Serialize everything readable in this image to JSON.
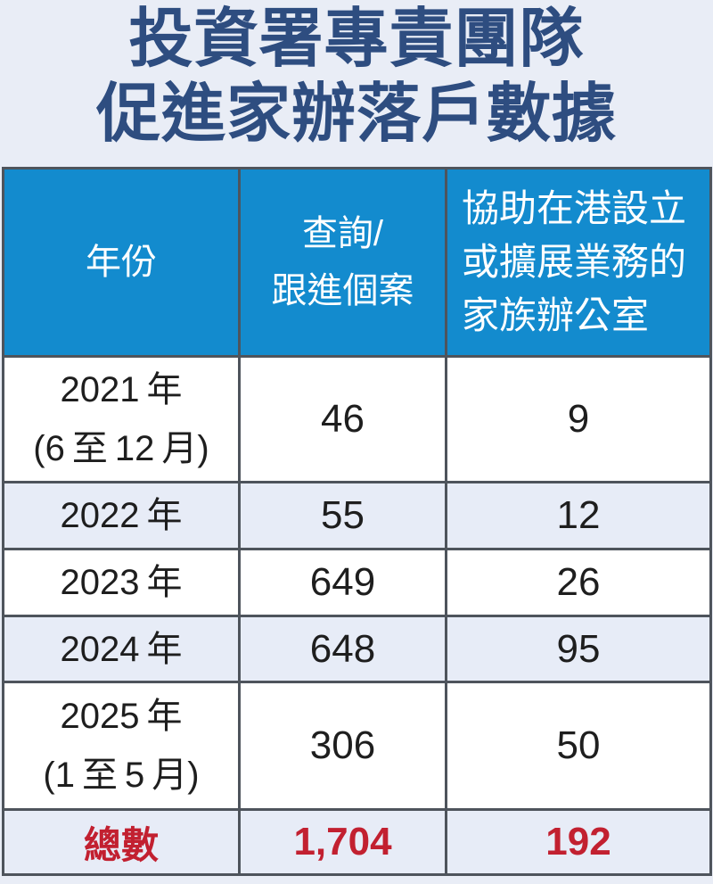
{
  "title": {
    "text": "投資署專責團隊\n促進家辦落戶數據",
    "color": "#2E4D80"
  },
  "table": {
    "headers": {
      "year": "年份",
      "inquiries": "查詢/\n跟進個案",
      "family_offices": "協助在港設立\n或擴展業務的\n家族辦公室"
    },
    "rows": [
      {
        "year": "2021 年\n(6 至 12 月)",
        "inquiries": "46",
        "family_offices": "9"
      },
      {
        "year": "2022 年",
        "inquiries": "55",
        "family_offices": "12"
      },
      {
        "year": "2023 年",
        "inquiries": "649",
        "family_offices": "26"
      },
      {
        "year": "2024 年",
        "inquiries": "648",
        "family_offices": "95"
      },
      {
        "year": "2025 年\n(1 至 5 月)",
        "inquiries": "306",
        "family_offices": "50"
      }
    ],
    "total": {
      "label": "總數",
      "inquiries": "1,704",
      "family_offices": "192"
    }
  },
  "colors": {
    "page_bg": "#E9EDF6",
    "header_bg": "#138BCE",
    "header_text": "#FFFFFF",
    "alt_row_bg": "#E7ECF7",
    "title_navy": "#2E4D80",
    "total_red": "#C22030",
    "border_outer": "#25303D",
    "border_inner": "#4E545C"
  },
  "chart_data": {
    "type": "table",
    "title": "投資署專責團隊促進家辦落戶數據",
    "columns": [
      "年份",
      "查詢/跟進個案",
      "協助在港設立或擴展業務的家族辦公室"
    ],
    "rows": [
      [
        "2021年(6至12月)",
        46,
        9
      ],
      [
        "2022年",
        55,
        12
      ],
      [
        "2023年",
        649,
        26
      ],
      [
        "2024年",
        648,
        95
      ],
      [
        "2025年(1至5月)",
        306,
        50
      ]
    ],
    "totals": {
      "label": "總數",
      "inquiries": 1704,
      "family_offices": 192
    },
    "legend_position": "none",
    "grid": true
  }
}
